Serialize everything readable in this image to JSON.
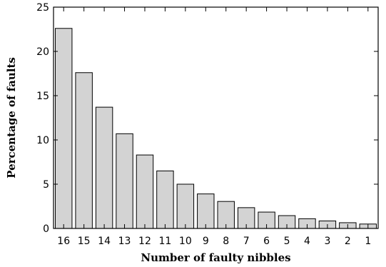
{
  "chart_data": {
    "type": "bar",
    "title": "",
    "xlabel": "Number of faulty nibbles",
    "ylabel": "Percentage of faults",
    "categories": [
      "16",
      "15",
      "14",
      "13",
      "12",
      "11",
      "10",
      "9",
      "8",
      "7",
      "6",
      "5",
      "4",
      "3",
      "2",
      "1"
    ],
    "values": [
      22.6,
      17.6,
      13.7,
      10.7,
      8.3,
      6.5,
      5.0,
      3.9,
      3.05,
      2.35,
      1.85,
      1.45,
      1.1,
      0.85,
      0.65,
      0.5
    ],
    "ylim": [
      0,
      25
    ],
    "yticks": [
      "0",
      "5",
      "10",
      "15",
      "20",
      "25"
    ],
    "grid": false,
    "legend": false,
    "colors": {
      "bar_fill": "#d3d3d3",
      "bar_stroke": "#000000"
    }
  }
}
